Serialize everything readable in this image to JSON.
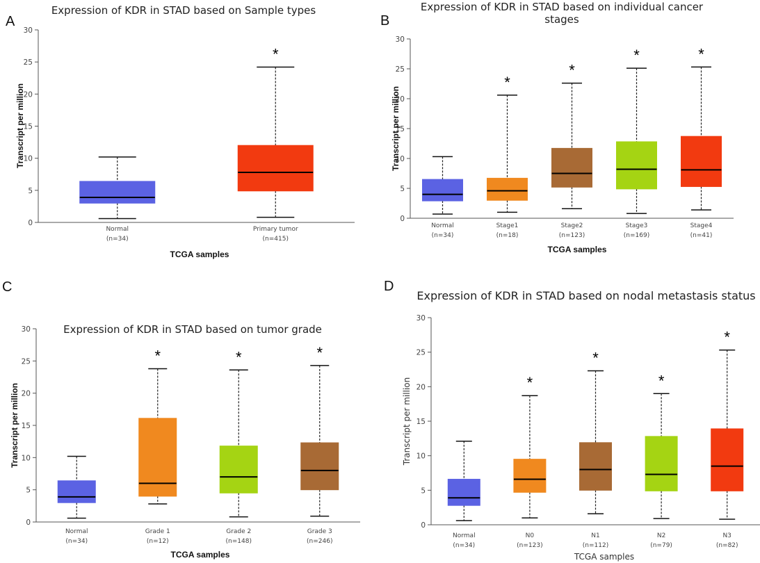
{
  "chart_data": [
    {
      "type": "box",
      "panel_letter": "A",
      "title": [
        "Expression of KDR in STAD based on Sample types"
      ],
      "xlabel": "TCGA samples",
      "ylabel": "Transcript per million",
      "ylim": [
        0,
        30
      ],
      "yticks": [
        0,
        5,
        10,
        15,
        20,
        25,
        30
      ],
      "categories": [
        {
          "name": "Normal",
          "n": "(n=34)",
          "color": "#5b62e3",
          "min": 0.6,
          "q1": 3.0,
          "median": 3.9,
          "q3": 6.4,
          "max": 10.2,
          "significant": false,
          "sig_label": ""
        },
        {
          "name": "Primary tumor",
          "n": "(n=415)",
          "color": "#f23a10",
          "min": 0.8,
          "q1": 4.9,
          "median": 7.8,
          "q3": 12.0,
          "max": 24.2,
          "significant": true,
          "sig_label": "*"
        }
      ]
    },
    {
      "type": "box",
      "panel_letter": "B",
      "title": [
        "Expression of KDR in STAD based on individual cancer",
        "stages"
      ],
      "xlabel": "TCGA samples",
      "ylabel": "Transcript per million",
      "ylim": [
        0,
        30
      ],
      "yticks": [
        0,
        5,
        10,
        15,
        20,
        25,
        30
      ],
      "categories": [
        {
          "name": "Normal",
          "n": "(n=34)",
          "color": "#5b62e3",
          "min": 0.7,
          "q1": 2.9,
          "median": 4.0,
          "q3": 6.5,
          "max": 10.3,
          "significant": false,
          "sig_label": ""
        },
        {
          "name": "Stage1",
          "n": "(n=18)",
          "color": "#f0891f",
          "min": 1.0,
          "q1": 3.0,
          "median": 4.6,
          "q3": 6.7,
          "max": 20.6,
          "significant": true,
          "sig_label": "*"
        },
        {
          "name": "Stage2",
          "n": "(n=123)",
          "color": "#a86a35",
          "min": 1.6,
          "q1": 5.2,
          "median": 7.5,
          "q3": 11.7,
          "max": 22.6,
          "significant": true,
          "sig_label": "*"
        },
        {
          "name": "Stage3",
          "n": "(n=169)",
          "color": "#a5d413",
          "min": 0.8,
          "q1": 4.9,
          "median": 8.2,
          "q3": 12.8,
          "max": 25.1,
          "significant": true,
          "sig_label": "*"
        },
        {
          "name": "Stage4",
          "n": "(n=41)",
          "color": "#f23a10",
          "min": 1.4,
          "q1": 5.3,
          "median": 8.1,
          "q3": 13.7,
          "max": 25.3,
          "significant": true,
          "sig_label": "*"
        }
      ]
    },
    {
      "type": "box",
      "panel_letter": "C",
      "title": [
        "Expression of KDR in STAD based on tumor grade"
      ],
      "xlabel": "TCGA samples",
      "ylabel": "Transcript per million",
      "ylim": [
        0,
        30
      ],
      "yticks": [
        0,
        5,
        10,
        15,
        20,
        25,
        30
      ],
      "categories": [
        {
          "name": "Normal",
          "n": "(n=34)",
          "color": "#5b62e3",
          "min": 0.6,
          "q1": 3.0,
          "median": 3.9,
          "q3": 6.4,
          "max": 10.2,
          "significant": false,
          "sig_label": ""
        },
        {
          "name": "Grade 1",
          "n": "(n=12)",
          "color": "#f0891f",
          "min": 2.8,
          "q1": 4.0,
          "median": 6.0,
          "q3": 16.1,
          "max": 23.8,
          "significant": true,
          "sig_label": "*"
        },
        {
          "name": "Grade 2",
          "n": "(n=148)",
          "color": "#a5d413",
          "min": 0.8,
          "q1": 4.5,
          "median": 7.0,
          "q3": 11.8,
          "max": 23.6,
          "significant": true,
          "sig_label": "*"
        },
        {
          "name": "Grade 3",
          "n": "(n=246)",
          "color": "#a86a35",
          "min": 0.9,
          "q1": 5.0,
          "median": 8.0,
          "q3": 12.3,
          "max": 24.3,
          "significant": true,
          "sig_label": "*"
        }
      ]
    },
    {
      "type": "box",
      "panel_letter": "D",
      "title": [
        "Expression of KDR in STAD based on nodal metastasis status"
      ],
      "xlabel": "TCGA samples",
      "ylabel": "Transcript per million",
      "ylim": [
        0,
        30
      ],
      "yticks": [
        0,
        5,
        10,
        15,
        20,
        25,
        30
      ],
      "categories": [
        {
          "name": "Normal",
          "n": "(n=34)",
          "color": "#5b62e3",
          "min": 0.6,
          "q1": 2.8,
          "median": 3.9,
          "q3": 6.6,
          "max": 12.1,
          "significant": false,
          "sig_label": ""
        },
        {
          "name": "N0",
          "n": "(n=123)",
          "color": "#f0891f",
          "min": 1.0,
          "q1": 4.7,
          "median": 6.6,
          "q3": 9.5,
          "max": 18.7,
          "significant": true,
          "sig_label": "*"
        },
        {
          "name": "N1",
          "n": "(n=112)",
          "color": "#a86a35",
          "min": 1.6,
          "q1": 5.0,
          "median": 8.0,
          "q3": 11.9,
          "max": 22.3,
          "significant": true,
          "sig_label": "*"
        },
        {
          "name": "N2",
          "n": "(n=79)",
          "color": "#a5d413",
          "min": 0.9,
          "q1": 4.9,
          "median": 7.3,
          "q3": 12.8,
          "max": 19.0,
          "significant": true,
          "sig_label": "*"
        },
        {
          "name": "N3",
          "n": "(n=82)",
          "color": "#f23a10",
          "min": 0.8,
          "q1": 4.9,
          "median": 8.5,
          "q3": 13.9,
          "max": 25.3,
          "significant": true,
          "sig_label": "*"
        }
      ]
    }
  ]
}
